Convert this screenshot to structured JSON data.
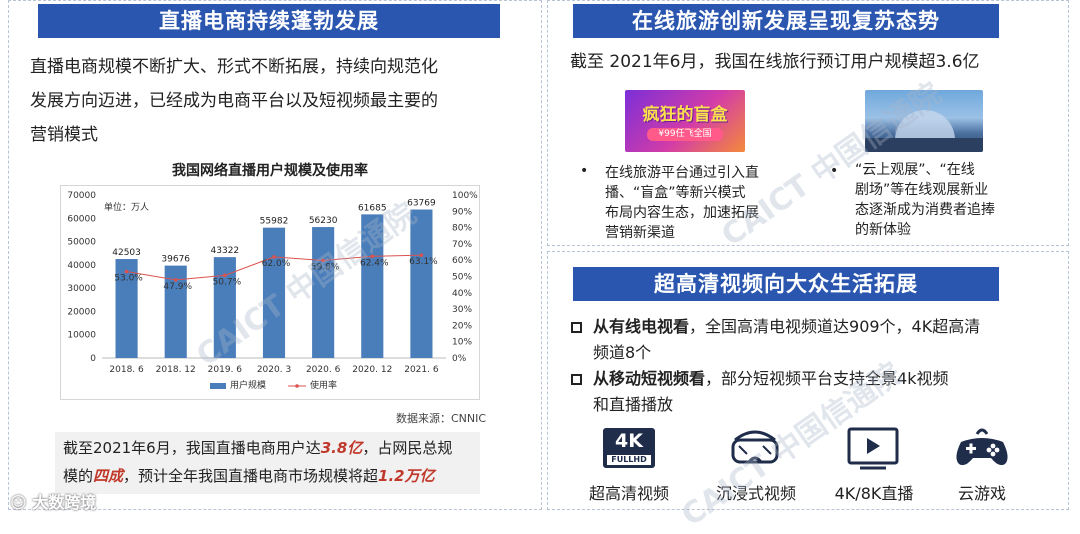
{
  "left": {
    "title": "直播电商持续蓬勃发展",
    "intro_line1": "直播电商规模不断扩大、形式不断拓展，持续向规范化",
    "intro_line2": "发展方向迈进，已经成为电商平台以及短视频最主要的",
    "intro_line3": "营销模式",
    "summary": {
      "p1": "截至2021年6月，我国直播电商用户达",
      "h1": "3.8亿",
      "p2": "，占网民总规",
      "p3": "模的",
      "h2": "四成",
      "p4": "，预计全年我国直播电商市场规模将超",
      "h3": "1.2万亿"
    }
  },
  "chart_data": {
    "type": "bar",
    "title": "我国网络直播用户规模及使用率",
    "unit_label": "单位：万人",
    "source": "数据来源：CNNIC",
    "categories": [
      "2018. 6",
      "2018. 12",
      "2019. 6",
      "2020. 3",
      "2020. 6",
      "2020. 12",
      "2021. 6"
    ],
    "series": [
      {
        "name": "用户规模",
        "type": "bar",
        "axis": "left",
        "values": [
          42503,
          39676,
          43322,
          55982,
          56230,
          61685,
          63769
        ],
        "labels": [
          "42503",
          "39676",
          "43322",
          "55982",
          "56230",
          "61685",
          "63769"
        ]
      },
      {
        "name": "使用率",
        "type": "line",
        "axis": "right",
        "values": [
          53.0,
          47.9,
          50.7,
          62.0,
          59.8,
          62.4,
          63.1
        ],
        "labels": [
          "53.0%",
          "47.9%",
          "50.7%",
          "62.0%",
          "59.8%",
          "62.4%",
          "63.1%"
        ]
      }
    ],
    "ylim_left": [
      0,
      70000
    ],
    "yticks_left": [
      "0",
      "10000",
      "20000",
      "30000",
      "40000",
      "50000",
      "60000",
      "70000"
    ],
    "ylim_right": [
      0,
      100
    ],
    "yticks_right": [
      "0%",
      "10%",
      "20%",
      "30%",
      "40%",
      "50%",
      "60%",
      "70%",
      "80%",
      "90%",
      "100%"
    ],
    "grid": false,
    "legend": "bottom",
    "colors": {
      "bar": "#4a7ebb",
      "line": "#d9534f"
    }
  },
  "top_right": {
    "title": "在线旅游创新发展呈现复苏态势",
    "subtitle": "截至 2021年6月，我国在线旅行预订用户规模超3.6亿",
    "thumb1_text": "疯狂的盲盒",
    "thumb1_sub": "¥99任飞全国",
    "bullet1": [
      "在线旅游平台通过引入直",
      "播、“盲盒”等新兴模式",
      "布局内容生态，加速拓展",
      "营销新渠道"
    ],
    "bullet2": [
      "“云上观展”、“在线",
      "剧场”等在线观展新业",
      "态逐渐成为消费者追捧",
      "的新体验"
    ]
  },
  "bottom_right": {
    "title": "超高清视频向大众生活拓展",
    "item1_bold": "从有线电视看",
    "item1_rest": "，全国高清电视频道达909个，4K超高清",
    "item1_line2": "频道8个",
    "item2_bold": "从移动短视频看",
    "item2_rest": "，部分短视频平台支持全景4k视频",
    "item2_line2": "和直播播放",
    "icons": [
      {
        "icon": "4k-fullhd-icon",
        "label": "超高清视频",
        "badge_top": "4K",
        "badge_bottom": "FULLHD"
      },
      {
        "icon": "vr-headset-icon",
        "label": "沉浸式视频"
      },
      {
        "icon": "play-screen-icon",
        "label": "4K/8K直播"
      },
      {
        "icon": "gamepad-icon",
        "label": "云游戏"
      }
    ]
  },
  "watermarks": [
    "CAICT 中国信通院",
    "CAICT 中国信通院",
    "CAICT 中国信通院"
  ],
  "footer": "大数跨境"
}
